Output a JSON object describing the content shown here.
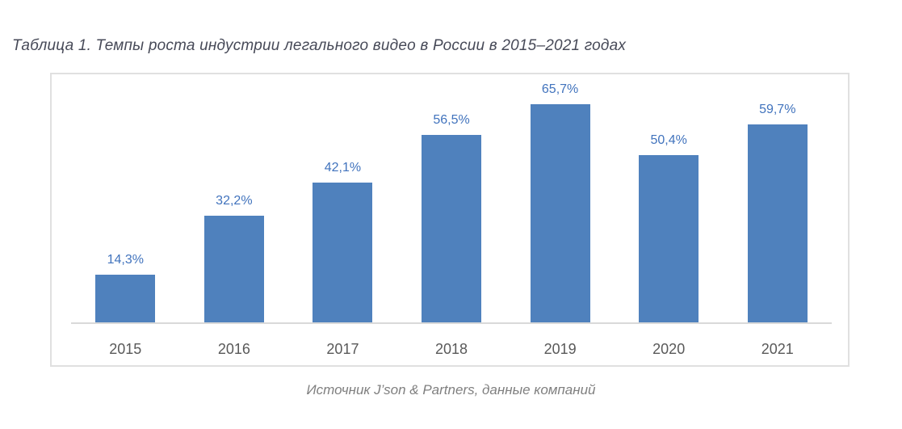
{
  "chart_data": {
    "type": "bar",
    "title": "Таблица 1. Темпы роста индустрии легального видео в России в 2015–2021 годах",
    "categories": [
      "2015",
      "2016",
      "2017",
      "2018",
      "2019",
      "2020",
      "2021"
    ],
    "values": [
      14.3,
      32.2,
      42.1,
      56.5,
      65.7,
      50.4,
      59.7
    ],
    "labels": [
      "14,3%",
      "32,2%",
      "42,1%",
      "56,5%",
      "65,7%",
      "50,4%",
      "59,7%"
    ],
    "xlabel": "",
    "ylabel": "",
    "ylim": [
      0,
      70
    ],
    "grid": false,
    "legend": false,
    "bar_color": "#4f81bd",
    "label_color": "#4173bd",
    "axis_line_color": "#d9d9d9",
    "source": "Источник J’son & Partners, данные компаний"
  }
}
